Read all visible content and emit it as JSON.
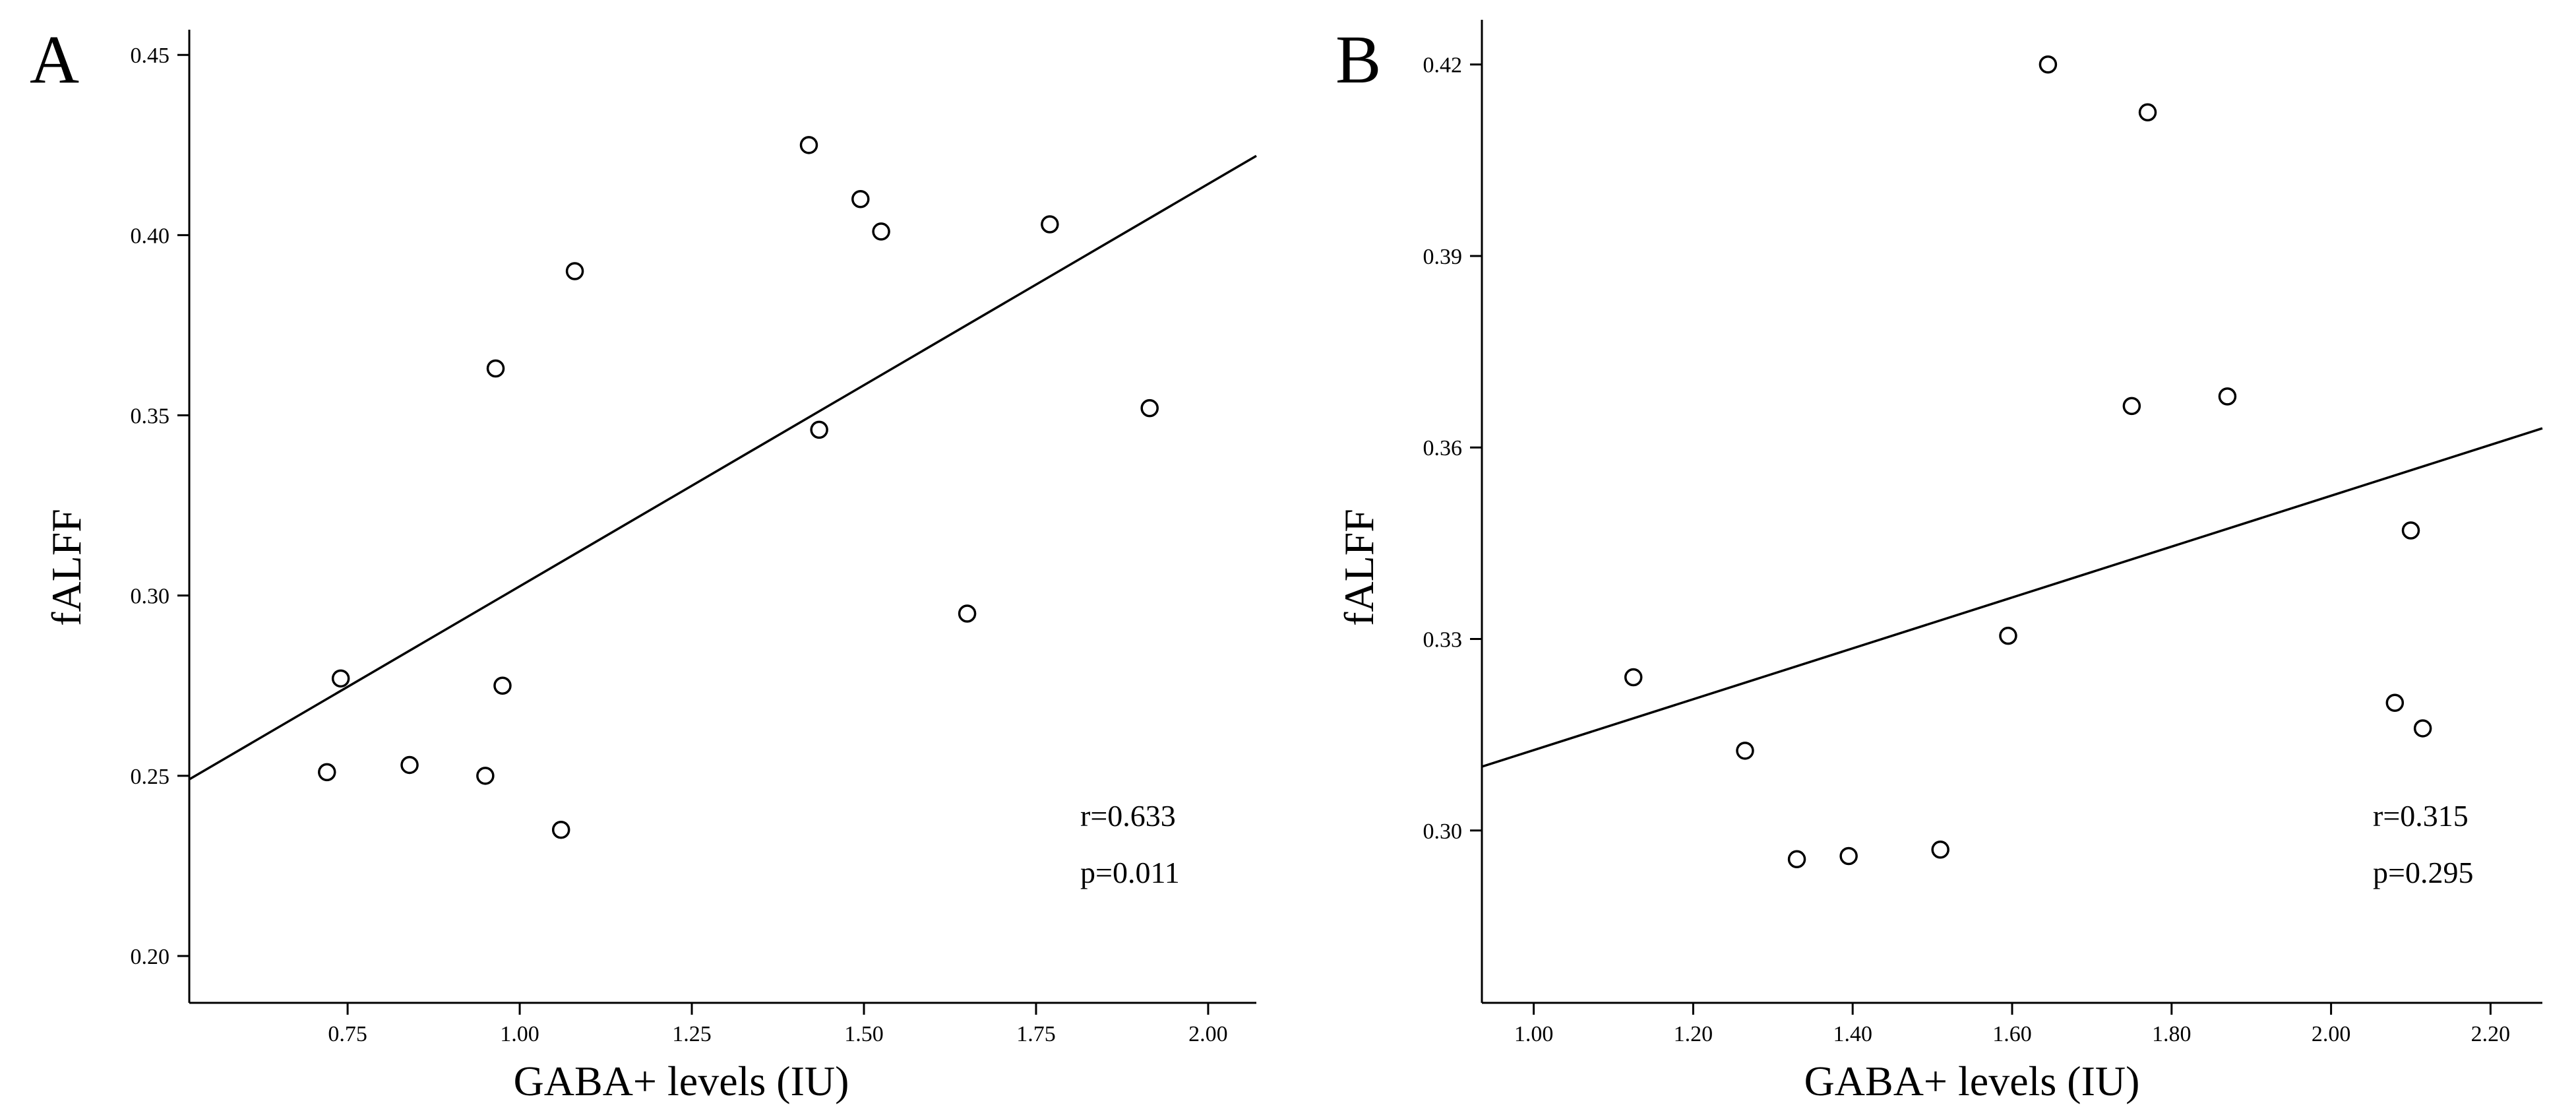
{
  "chart_data": [
    {
      "panel_label": "A",
      "type": "scatter",
      "xlabel": "GABA+ levels (IU)",
      "ylabel": "fALFF",
      "xlim": [
        0.52,
        2.07
      ],
      "ylim": [
        0.187,
        0.457
      ],
      "xticks": [
        0.75,
        1.0,
        1.25,
        1.5,
        1.75,
        2.0
      ],
      "xtick_labels": [
        "0.75",
        "1.00",
        "1.25",
        "1.50",
        "1.75",
        "2.00"
      ],
      "yticks": [
        0.2,
        0.25,
        0.3,
        0.35,
        0.4,
        0.45
      ],
      "ytick_labels": [
        "0.20",
        "0.25",
        "0.30",
        "0.35",
        "0.40",
        "0.45"
      ],
      "points": [
        {
          "x": 0.72,
          "y": 0.251
        },
        {
          "x": 0.74,
          "y": 0.277
        },
        {
          "x": 0.84,
          "y": 0.253
        },
        {
          "x": 0.95,
          "y": 0.25
        },
        {
          "x": 0.965,
          "y": 0.363
        },
        {
          "x": 0.975,
          "y": 0.275
        },
        {
          "x": 1.06,
          "y": 0.235
        },
        {
          "x": 1.08,
          "y": 0.39
        },
        {
          "x": 1.42,
          "y": 0.425
        },
        {
          "x": 1.435,
          "y": 0.346
        },
        {
          "x": 1.495,
          "y": 0.41
        },
        {
          "x": 1.525,
          "y": 0.401
        },
        {
          "x": 1.65,
          "y": 0.295
        },
        {
          "x": 1.77,
          "y": 0.403
        },
        {
          "x": 1.915,
          "y": 0.352
        }
      ],
      "fit_line": [
        {
          "x": 0.52,
          "y": 0.249
        },
        {
          "x": 2.07,
          "y": 0.422
        }
      ],
      "annotations": [
        "r=0.633",
        "p=0.011"
      ],
      "grid": false,
      "legend": "none"
    },
    {
      "panel_label": "B",
      "type": "scatter",
      "xlabel": "GABA+ levels (IU)",
      "ylabel": "fALFF",
      "xlim": [
        0.935,
        2.265
      ],
      "ylim": [
        0.273,
        0.427
      ],
      "xticks": [
        1.0,
        1.2,
        1.4,
        1.6,
        1.8,
        2.0,
        2.2
      ],
      "xtick_labels": [
        "1.00",
        "1.20",
        "1.40",
        "1.60",
        "1.80",
        "2.00",
        "2.20"
      ],
      "yticks": [
        0.3,
        0.33,
        0.36,
        0.39,
        0.42
      ],
      "ytick_labels": [
        "0.30",
        "0.33",
        "0.36",
        "0.39",
        "0.42"
      ],
      "points": [
        {
          "x": 1.125,
          "y": 0.324
        },
        {
          "x": 1.265,
          "y": 0.3125
        },
        {
          "x": 1.33,
          "y": 0.2955
        },
        {
          "x": 1.395,
          "y": 0.296
        },
        {
          "x": 1.51,
          "y": 0.297
        },
        {
          "x": 1.595,
          "y": 0.3305
        },
        {
          "x": 1.645,
          "y": 0.42
        },
        {
          "x": 1.75,
          "y": 0.3665
        },
        {
          "x": 1.77,
          "y": 0.4125
        },
        {
          "x": 1.87,
          "y": 0.368
        },
        {
          "x": 2.08,
          "y": 0.32
        },
        {
          "x": 2.1,
          "y": 0.347
        },
        {
          "x": 2.115,
          "y": 0.316
        }
      ],
      "fit_line": [
        {
          "x": 0.935,
          "y": 0.31
        },
        {
          "x": 2.265,
          "y": 0.363
        }
      ],
      "annotations": [
        "r=0.315",
        "p=0.295"
      ],
      "grid": false,
      "legend": "none"
    }
  ]
}
